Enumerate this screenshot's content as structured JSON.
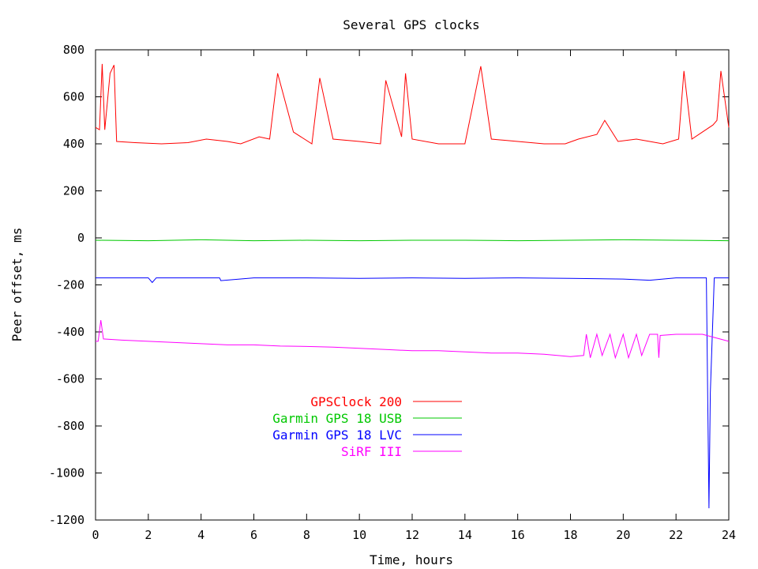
{
  "chart_data": {
    "type": "line",
    "title": "Several GPS clocks",
    "xlabel": "Time, hours",
    "ylabel": "Peer offset, ms",
    "xlim": [
      0,
      24
    ],
    "ylim": [
      -1200,
      800
    ],
    "xticks": [
      0,
      2,
      4,
      6,
      8,
      10,
      12,
      14,
      16,
      18,
      20,
      22,
      24
    ],
    "yticks": [
      -1200,
      -1000,
      -800,
      -600,
      -400,
      -200,
      0,
      200,
      400,
      600,
      800
    ],
    "grid": false,
    "legend_position": "lower-left",
    "series": [
      {
        "name": "GPSClock 200",
        "color": "#ff0000",
        "x": [
          0,
          0.15,
          0.25,
          0.35,
          0.55,
          0.7,
          0.8,
          1.5,
          2.5,
          3.5,
          4.2,
          5.0,
          5.5,
          6.2,
          6.6,
          6.9,
          7.5,
          8.2,
          8.5,
          9.0,
          10.0,
          10.8,
          11.0,
          11.6,
          11.75,
          12.0,
          13.0,
          14.0,
          14.6,
          15.0,
          16.0,
          17.0,
          17.8,
          18.3,
          19.0,
          19.3,
          19.8,
          20.5,
          21.0,
          21.5,
          22.1,
          22.3,
          22.6,
          23.0,
          23.4,
          23.55,
          23.7,
          24
        ],
        "y": [
          470,
          460,
          740,
          460,
          700,
          735,
          410,
          405,
          400,
          405,
          420,
          410,
          400,
          430,
          420,
          700,
          450,
          400,
          680,
          420,
          410,
          400,
          670,
          430,
          700,
          420,
          400,
          400,
          730,
          420,
          410,
          400,
          400,
          420,
          440,
          500,
          410,
          420,
          410,
          400,
          420,
          710,
          420,
          450,
          480,
          500,
          710,
          470
        ]
      },
      {
        "name": "Garmin GPS 18 USB",
        "color": "#00c800",
        "x": [
          0,
          2,
          4,
          6,
          8,
          10,
          12,
          14,
          16,
          18,
          20,
          22,
          24
        ],
        "y": [
          -10,
          -12,
          -8,
          -12,
          -10,
          -12,
          -10,
          -10,
          -12,
          -10,
          -8,
          -10,
          -12
        ]
      },
      {
        "name": "Garmin GPS 18 LVC",
        "color": "#0000ff",
        "x": [
          0,
          2.0,
          2.15,
          2.3,
          4,
          4.7,
          4.75,
          6,
          8,
          10,
          12,
          14,
          16,
          18,
          20,
          21.0,
          22,
          23.15,
          23.25,
          23.3,
          23.45,
          24
        ],
        "y": [
          -170,
          -170,
          -190,
          -170,
          -170,
          -170,
          -182,
          -170,
          -170,
          -172,
          -170,
          -172,
          -170,
          -172,
          -175,
          -180,
          -170,
          -170,
          -1150,
          -660,
          -170,
          -170
        ]
      },
      {
        "name": "SiRF III",
        "color": "#ff00ff",
        "x": [
          0,
          0.1,
          0.2,
          0.3,
          1,
          2,
          3,
          4,
          5,
          6,
          7,
          8,
          9,
          10,
          11,
          12,
          13,
          14,
          15,
          16,
          17,
          18,
          18.5,
          18.6,
          18.75,
          19.0,
          19.2,
          19.5,
          19.7,
          20.0,
          20.2,
          20.5,
          20.7,
          21.0,
          21.3,
          21.35,
          21.4,
          22,
          23,
          24
        ],
        "y": [
          -440,
          -440,
          -350,
          -430,
          -435,
          -440,
          -445,
          -450,
          -455,
          -455,
          -460,
          -462,
          -465,
          -470,
          -475,
          -480,
          -480,
          -485,
          -490,
          -490,
          -495,
          -505,
          -500,
          -410,
          -510,
          -410,
          -500,
          -410,
          -510,
          -410,
          -510,
          -410,
          -500,
          -410,
          -410,
          -510,
          -415,
          -410,
          -410,
          -440
        ]
      }
    ]
  }
}
